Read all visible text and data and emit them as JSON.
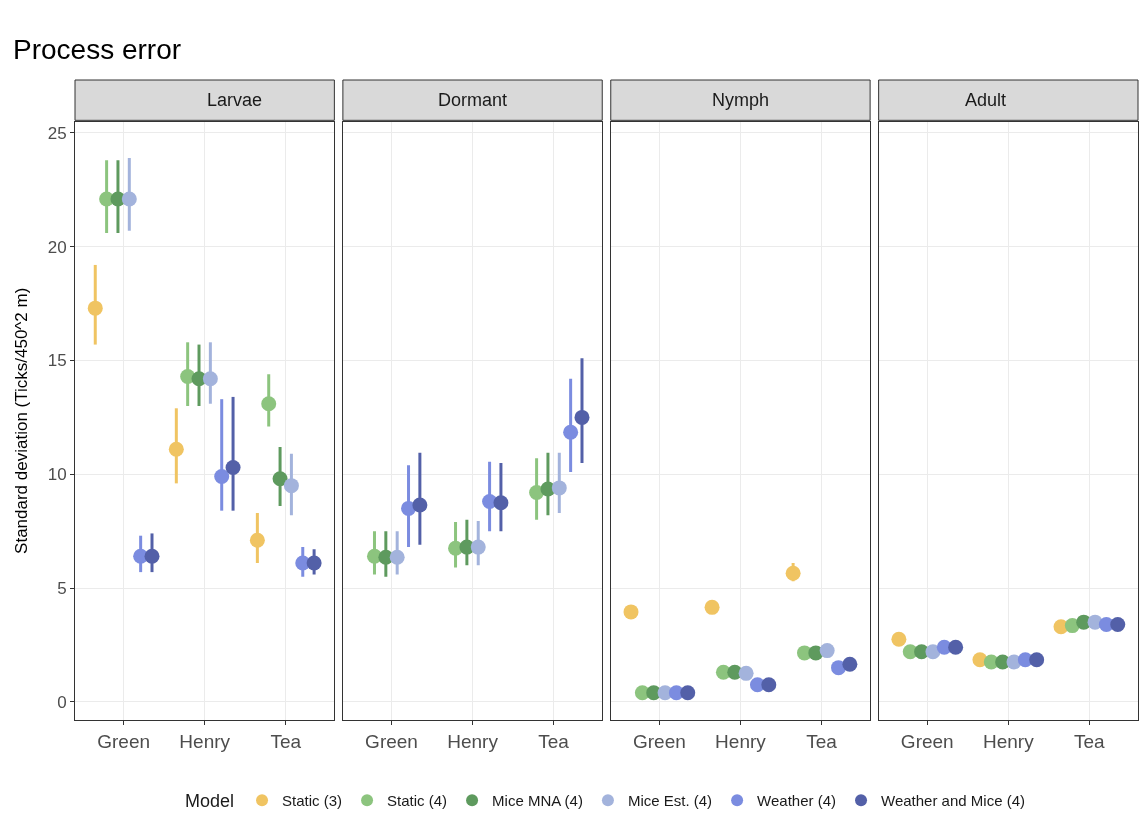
{
  "chart_data": [
    {
      "type": "scatter",
      "title": "Larvae",
      "annotations": [
        "Process error"
      ],
      "ylabel": "Standard deviation (Ticks/450^2 m)",
      "legend": "bottom",
      "legend_title": "Model",
      "marker": "circle",
      "grid": true,
      "categories": [
        "Green",
        "Henry",
        "Tea"
      ],
      "ylim": [
        -0.8,
        25.5
      ],
      "yticks": [
        0,
        5,
        10,
        15,
        20,
        25
      ],
      "series": [
        {
          "name": "Static (3)",
          "color": "#f0c462",
          "values": [
            17.3,
            11.1,
            7.1
          ],
          "errors": [
            [
              15.7,
              19.2
            ],
            [
              9.6,
              12.9
            ],
            [
              6.1,
              8.3
            ]
          ]
        },
        {
          "name": "Static (4)",
          "color": "#8cc47e",
          "values": [
            22.1,
            14.3,
            13.1
          ],
          "errors": [
            [
              20.6,
              23.8
            ],
            [
              13.0,
              15.8
            ],
            [
              12.1,
              14.4
            ]
          ]
        },
        {
          "name": "Mice MNA (4)",
          "color": "#5e9a5e",
          "values": [
            22.1,
            14.2,
            9.8
          ],
          "errors": [
            [
              20.6,
              23.8
            ],
            [
              13.0,
              15.7
            ],
            [
              8.6,
              11.2
            ]
          ]
        },
        {
          "name": "Mice Est. (4)",
          "color": "#a3b3dc",
          "values": [
            22.1,
            14.2,
            9.5
          ],
          "errors": [
            [
              20.7,
              23.9
            ],
            [
              13.1,
              15.8
            ],
            [
              8.2,
              10.9
            ]
          ]
        },
        {
          "name": "Weather (4)",
          "color": "#7b8ce0",
          "values": [
            6.4,
            9.9,
            6.1
          ],
          "errors": [
            [
              5.7,
              7.3
            ],
            [
              8.4,
              13.3
            ],
            [
              5.5,
              6.8
            ]
          ]
        },
        {
          "name": "Weather and Mice (4)",
          "color": "#5360a8",
          "values": [
            6.4,
            10.3,
            6.1
          ],
          "errors": [
            [
              5.7,
              7.4
            ],
            [
              8.4,
              13.4
            ],
            [
              5.6,
              6.7
            ]
          ]
        }
      ]
    },
    {
      "type": "scatter",
      "title": "Dormant",
      "marker": "circle",
      "grid": true,
      "tick_labels": "x",
      "categories": [
        "Green",
        "Henry",
        "Tea"
      ],
      "ylim": [
        -0.8,
        25.5
      ],
      "yticks": [
        0,
        5,
        10,
        15,
        20,
        25
      ],
      "series": [
        {
          "color": "#f0c462",
          "values": [
            null,
            null,
            null
          ],
          "errors": [
            null,
            null,
            null
          ]
        },
        {
          "color": "#8cc47e",
          "values": [
            6.4,
            6.75,
            9.2
          ],
          "errors": [
            [
              5.6,
              7.5
            ],
            [
              5.9,
              7.9
            ],
            [
              8.0,
              10.7
            ]
          ]
        },
        {
          "color": "#5e9a5e",
          "values": [
            6.35,
            6.8,
            9.35
          ],
          "errors": [
            [
              5.5,
              7.5
            ],
            [
              6.0,
              8.0
            ],
            [
              8.2,
              10.95
            ]
          ]
        },
        {
          "color": "#a3b3dc",
          "values": [
            6.35,
            6.8,
            9.4
          ],
          "errors": [
            [
              5.6,
              7.5
            ],
            [
              6.0,
              7.95
            ],
            [
              8.3,
              10.95
            ]
          ]
        },
        {
          "color": "#7b8ce0",
          "values": [
            8.5,
            8.8,
            11.85
          ],
          "errors": [
            [
              6.8,
              10.4
            ],
            [
              7.5,
              10.55
            ],
            [
              10.1,
              14.2
            ]
          ]
        },
        {
          "color": "#5360a8",
          "values": [
            8.65,
            8.75,
            12.5
          ],
          "errors": [
            [
              6.9,
              10.95
            ],
            [
              7.5,
              10.5
            ],
            [
              10.5,
              15.1
            ]
          ]
        }
      ]
    },
    {
      "type": "scatter",
      "title": "Nymph",
      "marker": "circle",
      "grid": true,
      "tick_labels": "x",
      "categories": [
        "Green",
        "Henry",
        "Tea"
      ],
      "ylim": [
        -0.8,
        25.5
      ],
      "yticks": [
        0,
        5,
        10,
        15,
        20,
        25
      ],
      "series": [
        {
          "color": "#f0c462",
          "values": [
            3.95,
            4.15,
            5.65
          ],
          "errors": [
            null,
            null,
            [
              5.3,
              6.1
            ]
          ]
        },
        {
          "color": "#8cc47e",
          "values": [
            0.4,
            1.3,
            2.15
          ],
          "errors": [
            null,
            null,
            null
          ]
        },
        {
          "color": "#5e9a5e",
          "values": [
            0.4,
            1.3,
            2.15
          ],
          "errors": [
            null,
            null,
            null
          ]
        },
        {
          "color": "#a3b3dc",
          "values": [
            0.4,
            1.25,
            2.25
          ],
          "errors": [
            null,
            null,
            null
          ]
        },
        {
          "color": "#7b8ce0",
          "values": [
            0.4,
            0.75,
            1.5
          ],
          "errors": [
            null,
            null,
            null
          ]
        },
        {
          "color": "#5360a8",
          "values": [
            0.4,
            0.75,
            1.65
          ],
          "errors": [
            null,
            null,
            null
          ]
        }
      ]
    },
    {
      "type": "scatter",
      "title": "Adult",
      "marker": "circle",
      "grid": true,
      "tick_labels": "x",
      "categories": [
        "Green",
        "Henry",
        "Tea"
      ],
      "ylim": [
        -0.8,
        25.5
      ],
      "yticks": [
        0,
        5,
        10,
        15,
        20,
        25
      ],
      "series": [
        {
          "color": "#f0c462",
          "values": [
            2.75,
            1.85,
            3.3
          ],
          "errors": [
            null,
            null,
            null
          ]
        },
        {
          "color": "#8cc47e",
          "values": [
            2.2,
            1.75,
            3.35
          ],
          "errors": [
            null,
            null,
            null
          ]
        },
        {
          "color": "#5e9a5e",
          "values": [
            2.2,
            1.75,
            3.5
          ],
          "errors": [
            null,
            null,
            null
          ]
        },
        {
          "color": "#a3b3dc",
          "values": [
            2.2,
            1.75,
            3.5
          ],
          "errors": [
            null,
            null,
            null
          ]
        },
        {
          "color": "#7b8ce0",
          "values": [
            2.4,
            1.85,
            3.4
          ],
          "errors": [
            null,
            null,
            null
          ]
        },
        {
          "color": "#5360a8",
          "values": [
            2.4,
            1.85,
            3.4
          ],
          "errors": [
            null,
            null,
            null
          ]
        }
      ]
    }
  ]
}
